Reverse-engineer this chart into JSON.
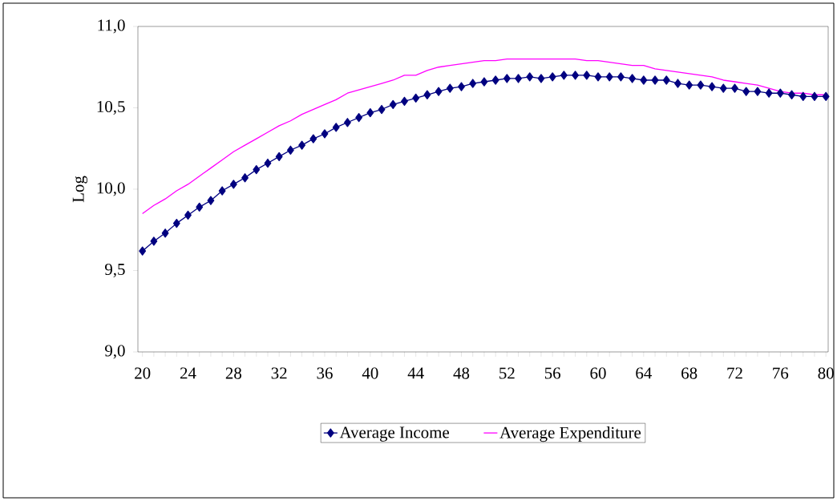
{
  "chart_data": {
    "type": "line",
    "ylabel": "Log",
    "x": [
      20,
      21,
      22,
      23,
      24,
      25,
      26,
      27,
      28,
      29,
      30,
      31,
      32,
      33,
      34,
      35,
      36,
      37,
      38,
      39,
      40,
      41,
      42,
      43,
      44,
      45,
      46,
      47,
      48,
      49,
      50,
      51,
      52,
      53,
      54,
      55,
      56,
      57,
      58,
      59,
      60,
      61,
      62,
      63,
      64,
      65,
      66,
      67,
      68,
      69,
      70,
      71,
      72,
      73,
      74,
      75,
      76,
      77,
      78,
      79,
      80
    ],
    "xlim": [
      19.6,
      80.2
    ],
    "xticks": [
      20,
      24,
      28,
      32,
      36,
      40,
      44,
      48,
      52,
      56,
      60,
      64,
      68,
      72,
      76,
      80
    ],
    "ylim": [
      9.0,
      11.0
    ],
    "yticks": [
      {
        "value": 9.0,
        "label": "9,0"
      },
      {
        "value": 9.5,
        "label": "9,5"
      },
      {
        "value": 10.0,
        "label": "10,0"
      },
      {
        "value": 10.5,
        "label": "10,5"
      },
      {
        "value": 11.0,
        "label": "11,0"
      }
    ],
    "legend": "bottom",
    "series": [
      {
        "name": "Average Income",
        "color": "#000080",
        "marker": "diamond",
        "line_style": "solid",
        "values": [
          9.62,
          9.68,
          9.73,
          9.79,
          9.84,
          9.89,
          9.93,
          9.99,
          10.03,
          10.07,
          10.12,
          10.16,
          10.2,
          10.24,
          10.27,
          10.31,
          10.34,
          10.38,
          10.41,
          10.44,
          10.47,
          10.49,
          10.52,
          10.54,
          10.56,
          10.58,
          10.6,
          10.62,
          10.63,
          10.65,
          10.66,
          10.67,
          10.68,
          10.68,
          10.69,
          10.68,
          10.69,
          10.7,
          10.7,
          10.7,
          10.69,
          10.69,
          10.69,
          10.68,
          10.67,
          10.67,
          10.67,
          10.65,
          10.64,
          10.64,
          10.63,
          10.62,
          10.62,
          10.6,
          10.6,
          10.59,
          10.59,
          10.58,
          10.57,
          10.57,
          10.57
        ]
      },
      {
        "name": "Average Expenditure",
        "color": "#ff00ff",
        "marker": "none",
        "line_style": "solid",
        "values": [
          9.85,
          9.9,
          9.94,
          9.99,
          10.03,
          10.08,
          10.13,
          10.18,
          10.23,
          10.27,
          10.31,
          10.35,
          10.39,
          10.42,
          10.46,
          10.49,
          10.52,
          10.55,
          10.59,
          10.61,
          10.63,
          10.65,
          10.67,
          10.7,
          10.7,
          10.73,
          10.75,
          10.76,
          10.77,
          10.78,
          10.79,
          10.79,
          10.8,
          10.8,
          10.8,
          10.8,
          10.8,
          10.8,
          10.8,
          10.79,
          10.79,
          10.78,
          10.77,
          10.76,
          10.76,
          10.74,
          10.73,
          10.72,
          10.71,
          10.7,
          10.69,
          10.67,
          10.66,
          10.65,
          10.64,
          10.62,
          10.6,
          10.59,
          10.59,
          10.58,
          10.58
        ]
      }
    ]
  }
}
